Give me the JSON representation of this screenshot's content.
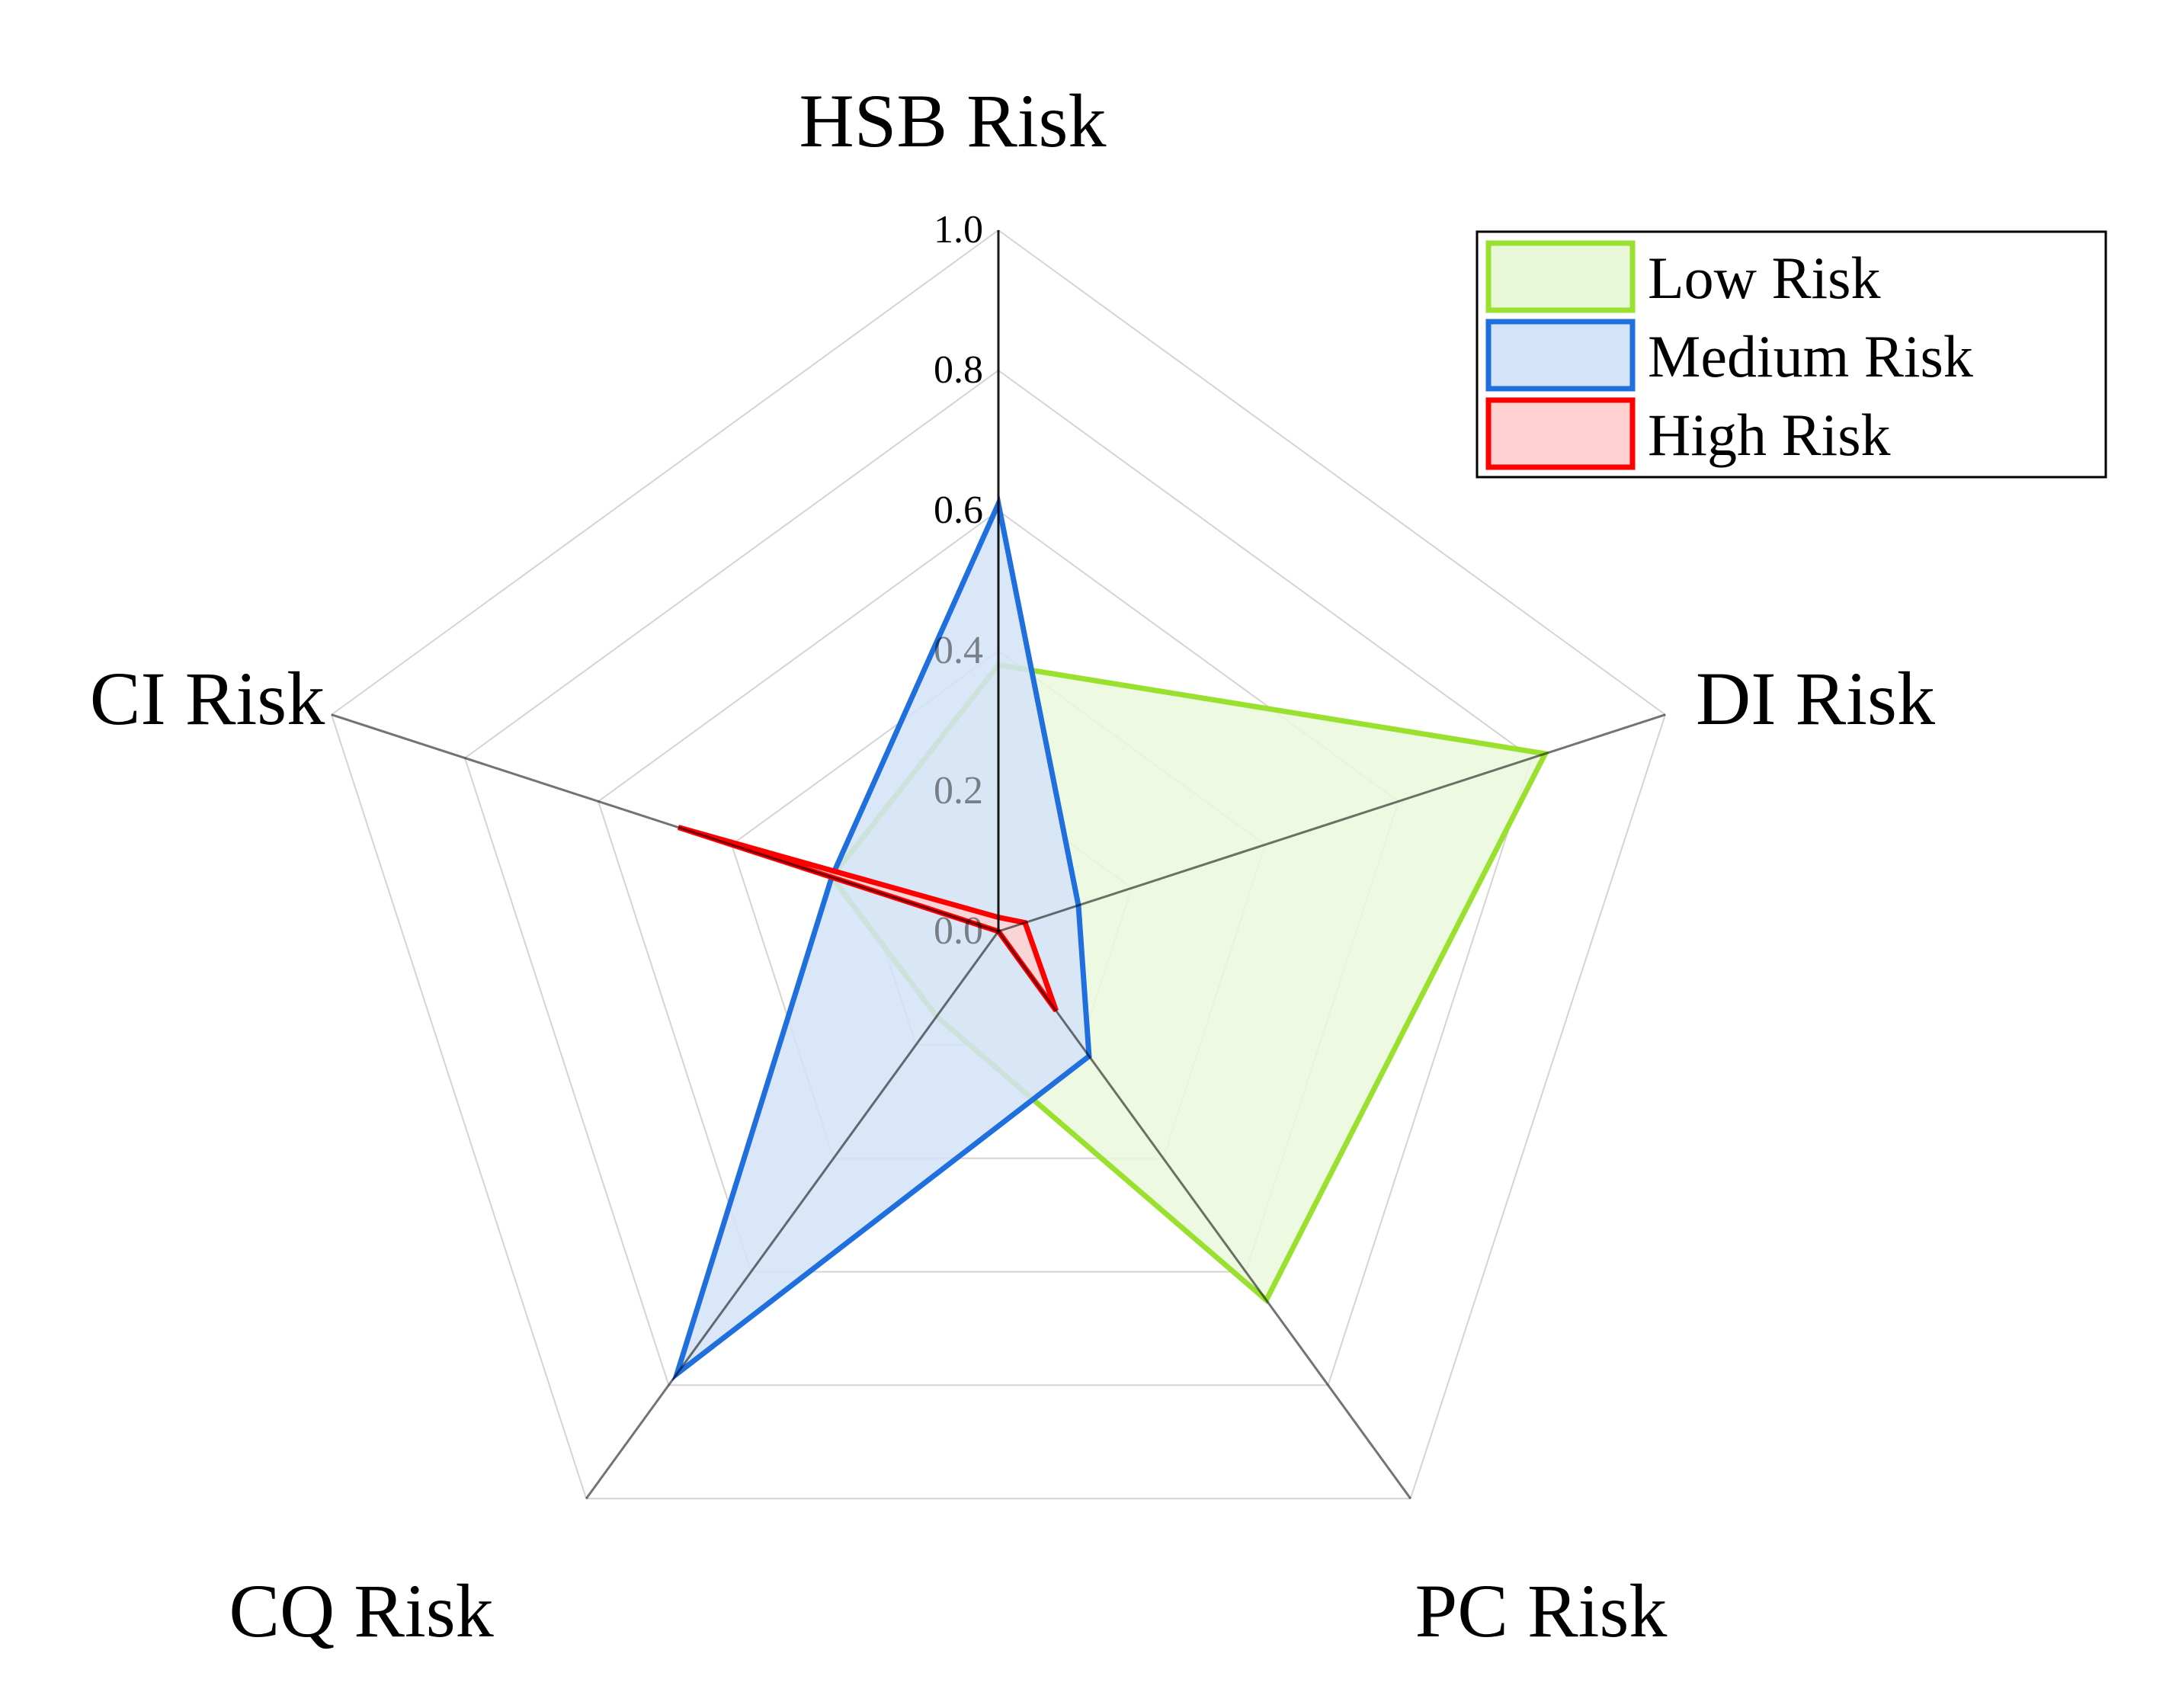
{
  "chart_data": {
    "type": "radar",
    "title": "",
    "axes": [
      "HSB Risk",
      "DI Risk",
      "PC Risk",
      "CQ Risk",
      "CI Risk"
    ],
    "range": [
      0,
      1.0
    ],
    "ticks": [
      "0.0",
      "0.2",
      "0.4",
      "0.6",
      "0.8",
      "1.0"
    ],
    "tick_values": [
      0,
      0.2,
      0.4,
      0.6,
      0.8,
      1.0
    ],
    "grid": true,
    "legend_position": "top-right",
    "series": [
      {
        "name": "Low Risk",
        "values": [
          0.38,
          0.82,
          0.65,
          0.15,
          0.25
        ],
        "color": "#99e02f",
        "fill": "#eaf8da"
      },
      {
        "name": "Medium Risk",
        "values": [
          0.61,
          0.12,
          0.22,
          0.78,
          0.25
        ],
        "color": "#1f6fde",
        "fill": "#d3e3f8"
      },
      {
        "name": "High Risk",
        "values": [
          0.02,
          0.04,
          0.14,
          0.0,
          0.48
        ],
        "color": "#ff0000",
        "fill": "#ffd1d1"
      }
    ]
  }
}
